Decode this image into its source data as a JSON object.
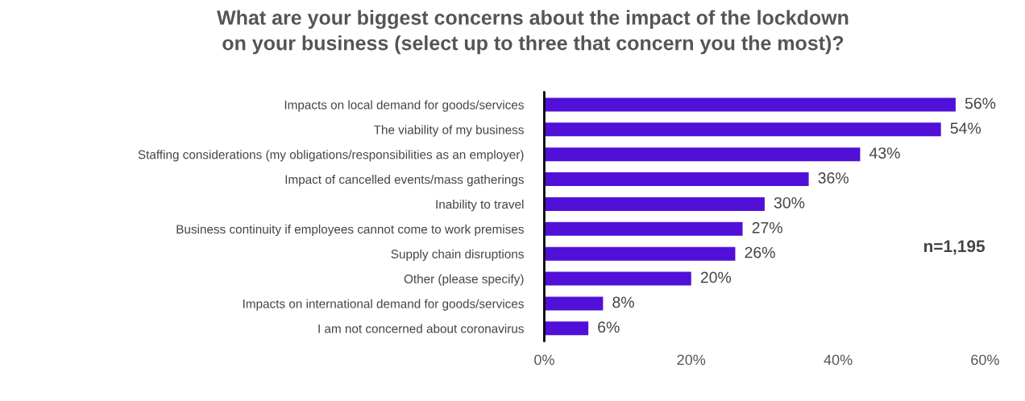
{
  "chart_data": {
    "type": "bar",
    "orientation": "horizontal",
    "title": "What are your biggest concerns about the impact of the lockdown\non your business (select up to three that concern you the most)?",
    "categories": [
      "Impacts on local demand for goods/services",
      "The viability of my business",
      "Staffing considerations (my obligations/responsibilities as an employer)",
      "Impact of cancelled events/mass gatherings",
      "Inability to travel",
      "Business continuity if employees cannot come to work premises",
      "Supply chain disruptions",
      "Other (please specify)",
      "Impacts on international demand for goods/services",
      "I am not concerned about coronavirus"
    ],
    "values": [
      56,
      54,
      43,
      36,
      30,
      27,
      26,
      20,
      8,
      6
    ],
    "value_labels": [
      "56%",
      "54%",
      "43%",
      "36%",
      "30%",
      "27%",
      "26%",
      "20%",
      "8%",
      "6%"
    ],
    "color": "#5010d8",
    "xlim": [
      0,
      60
    ],
    "xticks": [
      {
        "value": 0,
        "label": "0%"
      },
      {
        "value": 20,
        "label": "20%"
      },
      {
        "value": 40,
        "label": "40%"
      },
      {
        "value": 60,
        "label": "60%"
      }
    ],
    "annotations": [
      "n=1,195"
    ],
    "grid": false,
    "legend": false
  }
}
